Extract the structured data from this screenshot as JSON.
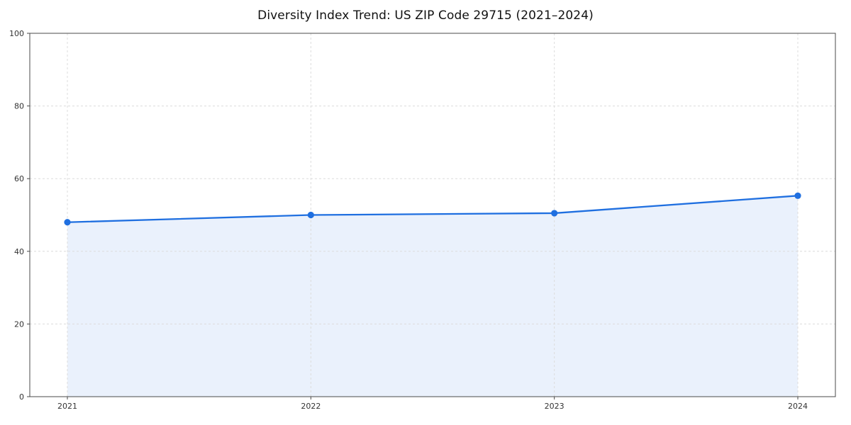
{
  "chart_data": {
    "type": "area",
    "title": "Diversity Index Trend: US ZIP Code 29715 (2021–2024)",
    "x": [
      "2021",
      "2022",
      "2023",
      "2024"
    ],
    "series": [
      {
        "name": "Diversity Index",
        "values": [
          48,
          50,
          50.5,
          55.3
        ]
      }
    ],
    "xlabel": "",
    "ylabel": "",
    "ylim": [
      0,
      100
    ],
    "yticks": [
      0,
      20,
      40,
      60,
      80,
      100
    ],
    "grid": "dashed",
    "legend": "none",
    "colors": {
      "line": "#1f6fe0",
      "marker": "#1f6fe0",
      "fill": "#e8f0fc",
      "grid": "#dcdcdc",
      "spine": "#4a4a4a",
      "tick_label": "#333333",
      "title": "#111111",
      "background": "#ffffff"
    }
  }
}
